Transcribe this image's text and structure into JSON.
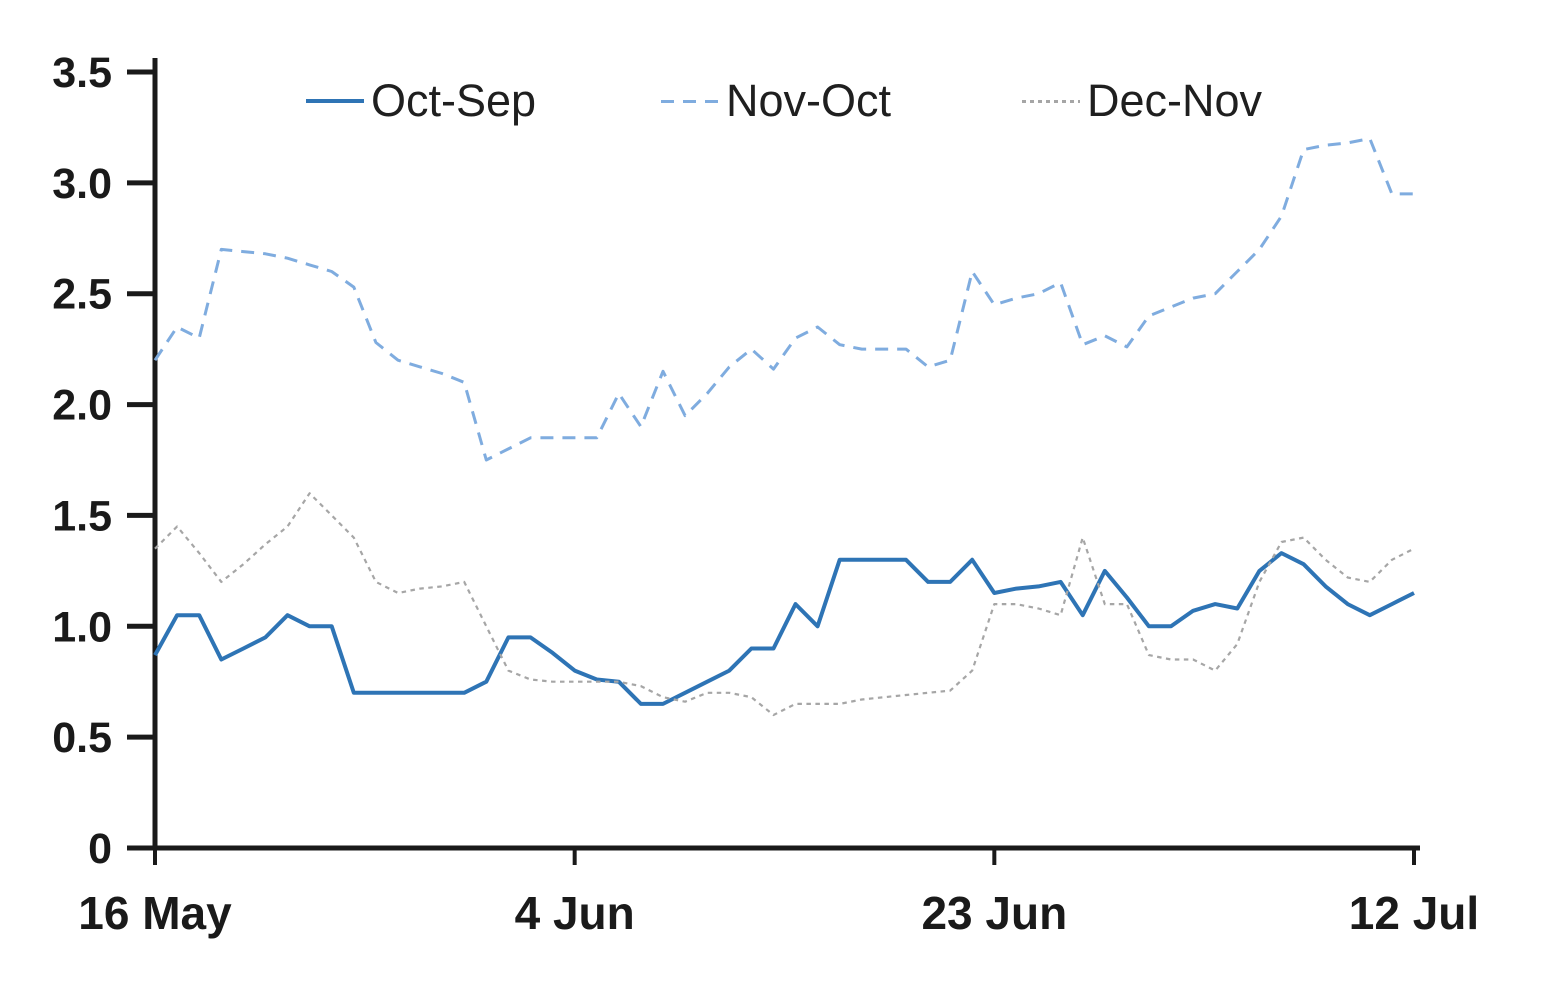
{
  "chart_data": {
    "type": "line",
    "title": "",
    "xlabel": "",
    "ylabel": "",
    "grid": "off",
    "legend_position": "top-center",
    "ylim": [
      0,
      3.5
    ],
    "y_axis_ticks": [
      0,
      0.5,
      1.0,
      1.5,
      2.0,
      2.5,
      3.0,
      3.5
    ],
    "y_tick_labels": [
      "0",
      "0.5",
      "1.0",
      "1.5",
      "2.0",
      "2.5",
      "3.0",
      "3.5"
    ],
    "x_axis_ticks": [
      {
        "label": "16 May",
        "index": 0
      },
      {
        "label": "4 Jun",
        "index": 19
      },
      {
        "label": "23 Jun",
        "index": 38
      },
      {
        "label": "12 Jul",
        "index": 57
      }
    ],
    "x": [
      "16 May",
      "17 May",
      "18 May",
      "19 May",
      "20 May",
      "21 May",
      "22 May",
      "23 May",
      "24 May",
      "25 May",
      "26 May",
      "27 May",
      "28 May",
      "29 May",
      "30 May",
      "31 May",
      "1 Jun",
      "2 Jun",
      "3 Jun",
      "4 Jun",
      "5 Jun",
      "6 Jun",
      "7 Jun",
      "8 Jun",
      "9 Jun",
      "10 Jun",
      "11 Jun",
      "12 Jun",
      "13 Jun",
      "14 Jun",
      "15 Jun",
      "16 Jun",
      "17 Jun",
      "18 Jun",
      "19 Jun",
      "20 Jun",
      "21 Jun",
      "22 Jun",
      "23 Jun",
      "24 Jun",
      "25 Jun",
      "26 Jun",
      "27 Jun",
      "28 Jun",
      "29 Jun",
      "30 Jun",
      "1 Jul",
      "2 Jul",
      "3 Jul",
      "4 Jul",
      "5 Jul",
      "6 Jul",
      "7 Jul",
      "8 Jul",
      "9 Jul",
      "10 Jul",
      "11 Jul",
      "12 Jul"
    ],
    "series": [
      {
        "name": "Oct-Sep",
        "color": "#2E74B5",
        "line_style": "solid",
        "values": [
          0.87,
          1.05,
          1.05,
          0.85,
          0.9,
          0.95,
          1.05,
          1.0,
          1.0,
          0.7,
          0.7,
          0.7,
          0.7,
          0.7,
          0.7,
          0.75,
          0.95,
          0.95,
          0.88,
          0.8,
          0.76,
          0.75,
          0.65,
          0.65,
          0.7,
          0.75,
          0.8,
          0.9,
          0.9,
          1.1,
          1.0,
          1.3,
          1.3,
          1.3,
          1.3,
          1.2,
          1.2,
          1.3,
          1.15,
          1.17,
          1.18,
          1.2,
          1.05,
          1.25,
          1.13,
          1.0,
          1.0,
          1.07,
          1.1,
          1.08,
          1.25,
          1.33,
          1.28,
          1.18,
          1.1,
          1.05,
          1.1,
          1.15
        ]
      },
      {
        "name": "Nov-Oct",
        "color": "#7FACDF",
        "line_style": "dashed",
        "values": [
          2.2,
          2.35,
          2.3,
          2.7,
          2.69,
          2.68,
          2.66,
          2.63,
          2.6,
          2.53,
          2.28,
          2.2,
          2.17,
          2.14,
          2.1,
          1.75,
          1.8,
          1.85,
          1.85,
          1.85,
          1.85,
          2.05,
          1.9,
          2.15,
          1.95,
          2.05,
          2.17,
          2.25,
          2.16,
          2.3,
          2.35,
          2.27,
          2.25,
          2.25,
          2.25,
          2.17,
          2.2,
          2.6,
          2.45,
          2.48,
          2.5,
          2.55,
          2.27,
          2.31,
          2.26,
          2.4,
          2.44,
          2.48,
          2.5,
          2.6,
          2.7,
          2.85,
          3.15,
          3.17,
          3.18,
          3.2,
          2.95,
          2.95
        ]
      },
      {
        "name": "Dec-Nov",
        "color": "#A6A6A6",
        "line_style": "dotted",
        "values": [
          1.35,
          1.45,
          1.33,
          1.2,
          1.28,
          1.37,
          1.45,
          1.6,
          1.5,
          1.4,
          1.2,
          1.15,
          1.17,
          1.18,
          1.2,
          1.0,
          0.8,
          0.76,
          0.75,
          0.75,
          0.75,
          0.75,
          0.73,
          0.68,
          0.66,
          0.7,
          0.7,
          0.68,
          0.6,
          0.65,
          0.65,
          0.65,
          0.67,
          0.68,
          0.69,
          0.7,
          0.71,
          0.8,
          1.1,
          1.1,
          1.08,
          1.05,
          1.4,
          1.1,
          1.1,
          0.87,
          0.85,
          0.85,
          0.8,
          0.92,
          1.2,
          1.38,
          1.4,
          1.3,
          1.22,
          1.2,
          1.3,
          1.35
        ]
      }
    ]
  }
}
